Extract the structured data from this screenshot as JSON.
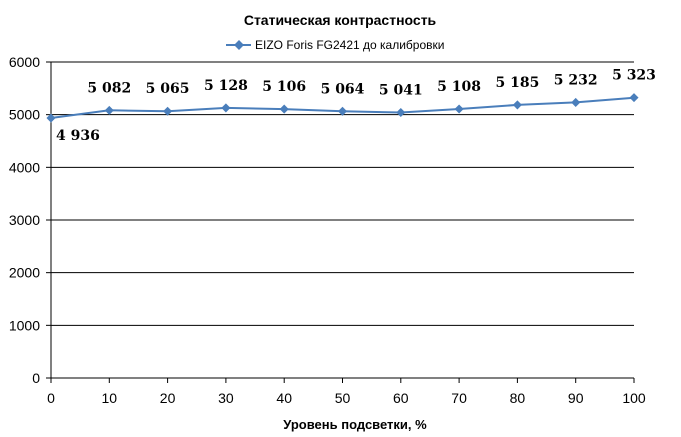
{
  "chart_data": {
    "type": "line",
    "title": "Статическая контрастность",
    "xlabel": "Уровень подсветки, %",
    "ylabel": "",
    "xlim": [
      0,
      100
    ],
    "ylim": [
      0,
      6000
    ],
    "x_ticks": [
      "0",
      "10",
      "20",
      "30",
      "40",
      "50",
      "60",
      "70",
      "80",
      "90",
      "100"
    ],
    "y_ticks": [
      "0",
      "1000",
      "2000",
      "3000",
      "4000",
      "5000",
      "6000"
    ],
    "grid": "horizontal",
    "legend_position": "top-center",
    "series": [
      {
        "name": "EIZO Foris FG2421 до калибровки",
        "color": "#4a7ebb",
        "x": [
          0,
          10,
          20,
          30,
          40,
          50,
          60,
          70,
          80,
          90,
          100
        ],
        "y": [
          4936,
          5082,
          5065,
          5128,
          5106,
          5064,
          5041,
          5108,
          5185,
          5232,
          5323
        ],
        "labels": [
          "4 936",
          "5 082",
          "5 065",
          "5 128",
          "5 106",
          "5 064",
          "5 041",
          "5 108",
          "5 185",
          "5 232",
          "5 323"
        ]
      }
    ]
  }
}
